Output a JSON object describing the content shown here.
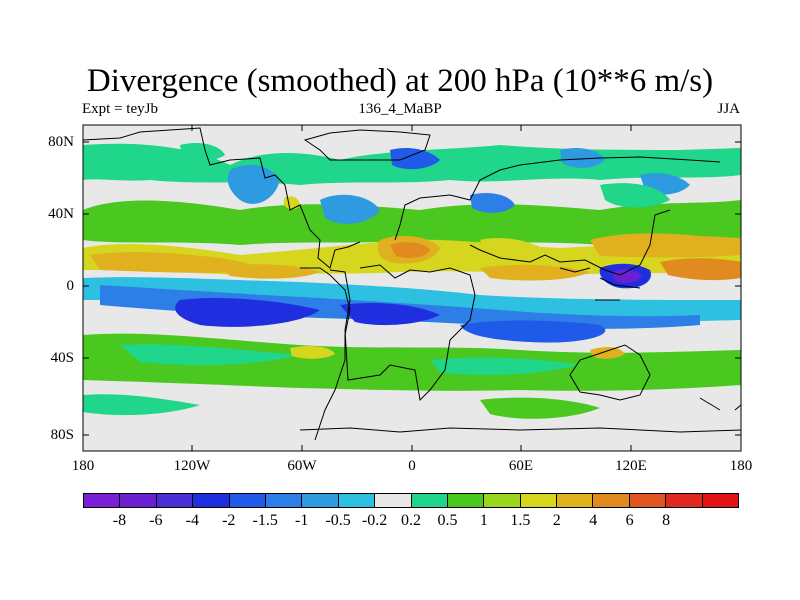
{
  "title": "Divergence (smoothed) at 200 hPa (10**6 m/s)",
  "subtitle_left": "Expt = teyJb",
  "subtitle_center": "136_4_MaBP",
  "subtitle_right": "JJA",
  "colors": {
    "land_mask": "#e6e6e6",
    "levels": [
      "#7a1fd6",
      "#6a1fd0",
      "#4a2ed6",
      "#1f2fe0",
      "#1f5ae8",
      "#2e7ee8",
      "#2e9be0",
      "#2ec0e0",
      "#e8e8e8",
      "#1fd68a",
      "#4ac81f",
      "#9ad61f",
      "#d6d61f",
      "#e0b01f",
      "#e08a1f",
      "#e0541f",
      "#e0281f",
      "#e01414"
    ]
  },
  "chart_data": {
    "type": "heatmap",
    "variable": "Divergence (smoothed) at 200 hPa",
    "units": "10**6 m/s",
    "experiment": "teyJb",
    "period": "136_4_MaBP",
    "season": "JJA",
    "x_range": [
      -180,
      180
    ],
    "y_range": [
      -90,
      90
    ],
    "x_ticks": [
      "180",
      "120W",
      "60W",
      "0",
      "60E",
      "120E",
      "180"
    ],
    "y_ticks": [
      "80N",
      "40N",
      "0",
      "40S",
      "80S"
    ],
    "colorbar_levels": [
      "-8",
      "-6",
      "-4",
      "-2",
      "-1.5",
      "-1",
      "-0.5",
      "-0.2",
      "0.2",
      "0.5",
      "1",
      "1.5",
      "2",
      "4",
      "6",
      "8"
    ],
    "features": [
      {
        "lon": -140,
        "lat": 10,
        "value": 2,
        "desc": "band along 10-20N"
      },
      {
        "lon": -120,
        "lat": -15,
        "value": -2,
        "desc": "deep convergence band 10-25S"
      },
      {
        "lon": -10,
        "lat": 17,
        "value": 4,
        "desc": "West Africa divergence max"
      },
      {
        "lon": -75,
        "lat": 15,
        "value": 4,
        "desc": "Caribbean divergence max"
      },
      {
        "lon": 120,
        "lat": 3,
        "value": -4,
        "desc": "maritime continent convergence"
      },
      {
        "lon": 160,
        "lat": 20,
        "value": 2,
        "desc": "W Pacific divergence"
      }
    ]
  }
}
